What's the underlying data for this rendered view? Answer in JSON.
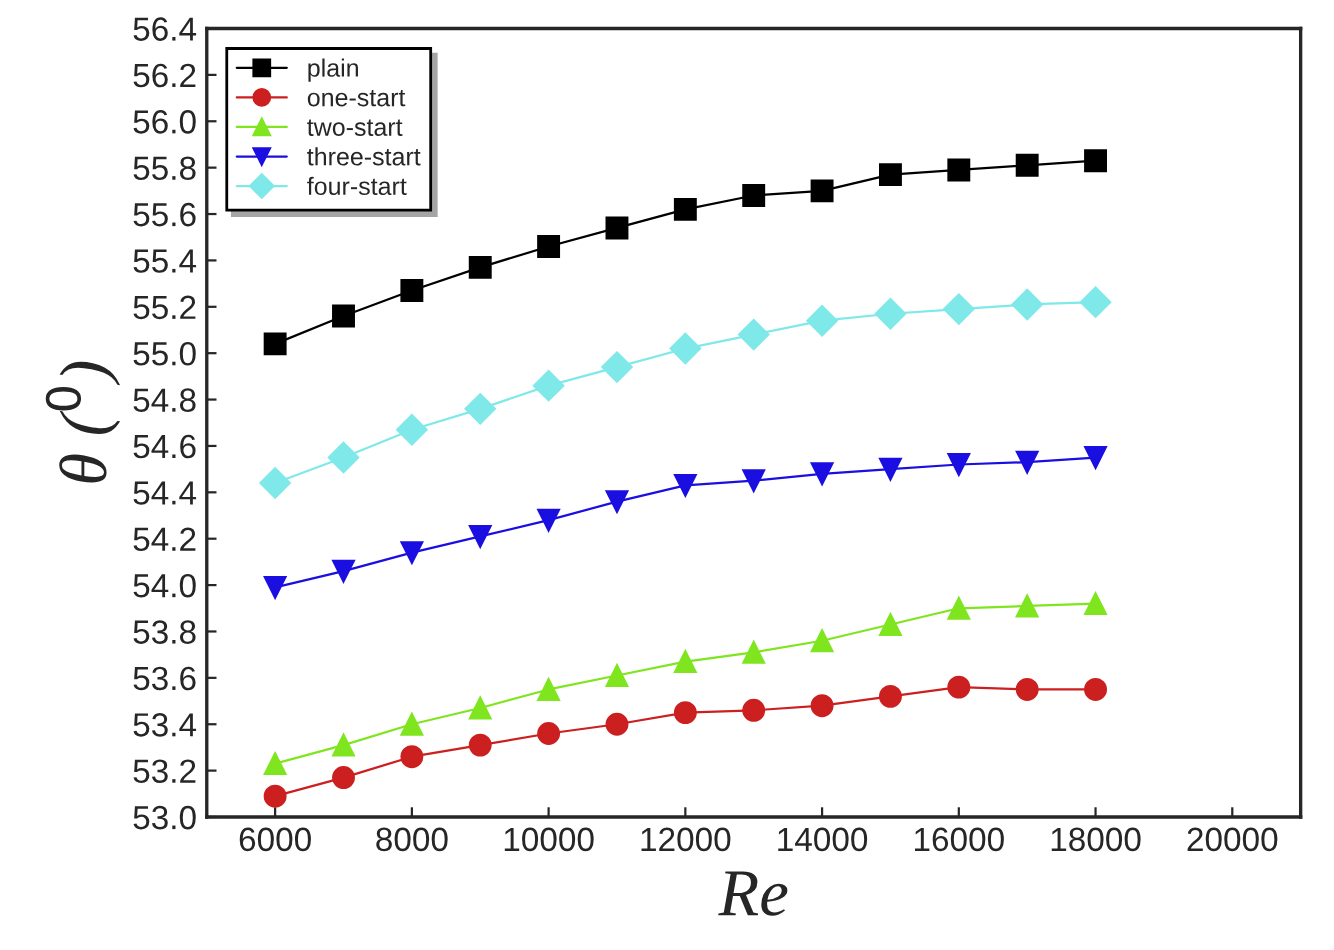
{
  "chart_data": {
    "type": "line",
    "xlabel": "Re",
    "ylabel": "θ ($^{0}$)",
    "x": [
      6000,
      7000,
      8000,
      9000,
      10000,
      11000,
      12000,
      13000,
      14000,
      15000,
      16000,
      17000,
      18000
    ],
    "series": [
      {
        "name": "plain",
        "color": "#000000",
        "marker": "square",
        "values": [
          55.04,
          55.16,
          55.27,
          55.37,
          55.46,
          55.54,
          55.62,
          55.68,
          55.7,
          55.77,
          55.79,
          55.81,
          55.83
        ]
      },
      {
        "name": "one-start",
        "color": "#cc1f1f",
        "marker": "circle",
        "values": [
          53.09,
          53.17,
          53.26,
          53.31,
          53.36,
          53.4,
          53.45,
          53.46,
          53.48,
          53.52,
          53.56,
          53.55,
          53.55
        ]
      },
      {
        "name": "two-start",
        "color": "#7fe51f",
        "marker": "triangle",
        "values": [
          53.23,
          53.31,
          53.4,
          53.47,
          53.55,
          53.61,
          53.67,
          53.71,
          53.76,
          53.83,
          53.9,
          53.91,
          53.92
        ]
      },
      {
        "name": "three-start",
        "color": "#1a0fe0",
        "marker": "triangle_down",
        "values": [
          53.99,
          54.06,
          54.14,
          54.21,
          54.28,
          54.36,
          54.43,
          54.45,
          54.48,
          54.5,
          54.52,
          54.53,
          54.55
        ]
      },
      {
        "name": "four-start",
        "color": "#7fe8e8",
        "marker": "diamond",
        "values": [
          54.44,
          54.55,
          54.67,
          54.76,
          54.86,
          54.94,
          55.02,
          55.08,
          55.14,
          55.17,
          55.19,
          55.21,
          55.22
        ]
      }
    ],
    "xlim": [
      5000,
      21000
    ],
    "xticks": [
      6000,
      8000,
      10000,
      12000,
      14000,
      16000,
      18000,
      20000
    ],
    "ylim": [
      53.0,
      56.4
    ],
    "yticks": [
      {
        "value": 53.0,
        "label": "53.0"
      },
      {
        "value": 53.2,
        "label": "53.2"
      },
      {
        "value": 53.4,
        "label": "53.4"
      },
      {
        "value": 53.6,
        "label": "53.6"
      },
      {
        "value": 53.8,
        "label": "53.8"
      },
      {
        "value": 54.0,
        "label": "54.0"
      },
      {
        "value": 54.2,
        "label": "54.2"
      },
      {
        "value": 54.4,
        "label": "54.4"
      },
      {
        "value": 54.6,
        "label": "54.6"
      },
      {
        "value": 54.8,
        "label": "54.8"
      },
      {
        "value": 55.0,
        "label": "55.0"
      },
      {
        "value": 55.2,
        "label": "55.2"
      },
      {
        "value": 55.4,
        "label": "55.4"
      },
      {
        "value": 55.6,
        "label": "55.6"
      },
      {
        "value": 55.8,
        "label": "55.8"
      },
      {
        "value": 56.0,
        "label": "56.0"
      },
      {
        "value": 56.2,
        "label": "56.2"
      },
      {
        "value": 56.4,
        "label": "56.4"
      }
    ],
    "grid": false,
    "legend": "top left",
    "line_style": "solid"
  }
}
